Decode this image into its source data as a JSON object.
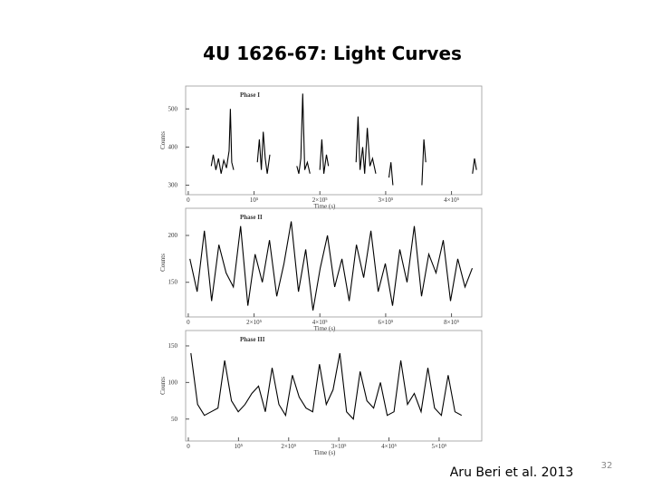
{
  "slide": {
    "title": "4U 1626-67: Light Curves",
    "citation": "Aru Beri et al. 2013",
    "page_number": 32
  },
  "chart_data": [
    {
      "type": "line",
      "title": "Phase I",
      "x_label": "Time (s)",
      "y_label": "Counts",
      "color": "#000000",
      "x": [
        35000,
        38000,
        42000,
        46000,
        50000,
        54000,
        58000,
        62000,
        64000,
        66000,
        69000,
        72000,
        105000,
        108000,
        111000,
        114000,
        117000,
        120000,
        124000,
        127000,
        165000,
        168000,
        171000,
        174000,
        177000,
        181000,
        185000,
        188000,
        200000,
        203000,
        206000,
        210000,
        213000,
        216000,
        255000,
        258000,
        261000,
        265000,
        268000,
        272000,
        276000,
        280000,
        285000,
        290000,
        305000,
        308000,
        311000,
        313000,
        355000,
        358000,
        361000,
        364000,
        432000,
        435000,
        438000
      ],
      "values": [
        350,
        380,
        340,
        370,
        330,
        365,
        345,
        390,
        500,
        360,
        340,
        null,
        360,
        420,
        340,
        440,
        370,
        330,
        380,
        null,
        350,
        330,
        370,
        540,
        340,
        360,
        330,
        null,
        340,
        420,
        330,
        380,
        350,
        null,
        360,
        480,
        340,
        400,
        330,
        450,
        350,
        370,
        330,
        null,
        320,
        360,
        300,
        null,
        300,
        420,
        360,
        null,
        330,
        370,
        340
      ],
      "xlim": [
        -4000,
        446000
      ],
      "ylim": [
        275,
        560
      ],
      "xticks": [
        0,
        {
          "value": 100000,
          "label": "10⁵"
        },
        {
          "value": 200000,
          "label": "2×10⁵"
        },
        {
          "value": 300000,
          "label": "3×10⁵"
        },
        {
          "value": 400000,
          "label": "4×10⁵"
        }
      ],
      "yticks": [
        300,
        400,
        500
      ]
    },
    {
      "type": "line",
      "title": "Phase II",
      "x_label": "Time (s)",
      "y_label": "Counts",
      "color": "#000000",
      "x": [
        5000,
        27000,
        49000,
        71000,
        93000,
        115000,
        137000,
        159000,
        181000,
        203000,
        225000,
        247000,
        269000,
        291000,
        313000,
        335000,
        357000,
        379000,
        401000,
        423000,
        445000,
        467000,
        489000,
        511000,
        533000,
        555000,
        577000,
        599000,
        621000,
        643000,
        665000,
        687000,
        709000,
        731000,
        753000,
        775000,
        797000,
        819000,
        841000,
        863000
      ],
      "values": [
        175,
        140,
        205,
        130,
        190,
        160,
        145,
        210,
        125,
        180,
        150,
        195,
        135,
        170,
        215,
        140,
        185,
        120,
        165,
        200,
        145,
        175,
        130,
        190,
        155,
        205,
        140,
        170,
        125,
        185,
        150,
        210,
        135,
        180,
        160,
        195,
        130,
        175,
        145,
        165
      ],
      "xlim": [
        -8000,
        892000
      ],
      "ylim": [
        113,
        229
      ],
      "xticks": [
        0,
        {
          "value": 200000,
          "label": "2×10⁵"
        },
        {
          "value": 400000,
          "label": "4×10⁵"
        },
        {
          "value": 600000,
          "label": "6×10⁵"
        },
        {
          "value": 800000,
          "label": "8×10⁵"
        }
      ],
      "yticks": [
        150,
        200
      ]
    },
    {
      "type": "line",
      "title": "Phase III",
      "x_label": "Time (s)",
      "y_label": "Counts",
      "color": "#000000",
      "x": [
        5000,
        18500,
        32000,
        45500,
        59000,
        72500,
        86000,
        99500,
        113000,
        126500,
        140000,
        153500,
        167000,
        180500,
        194000,
        207500,
        221000,
        234500,
        248000,
        261500,
        275000,
        288500,
        302000,
        315500,
        329000,
        342500,
        356000,
        369500,
        383000,
        396500,
        410000,
        423500,
        437000,
        450500,
        464000,
        477500,
        491000,
        504500,
        518000,
        531500,
        545000
      ],
      "values": [
        140,
        70,
        55,
        60,
        65,
        130,
        75,
        60,
        70,
        85,
        95,
        60,
        120,
        70,
        55,
        110,
        80,
        65,
        60,
        125,
        70,
        90,
        140,
        60,
        50,
        115,
        75,
        65,
        100,
        55,
        60,
        130,
        70,
        85,
        60,
        120,
        65,
        55,
        110,
        60,
        55
      ],
      "xlim": [
        -5400,
        585000
      ],
      "ylim": [
        20,
        171
      ],
      "xticks": [
        0,
        {
          "value": 100000,
          "label": "10⁵"
        },
        {
          "value": 200000,
          "label": "2×10⁵"
        },
        {
          "value": 300000,
          "label": "3×10⁵"
        },
        {
          "value": 400000,
          "label": "4×10⁵"
        },
        {
          "value": 500000,
          "label": "5×10⁵"
        }
      ],
      "yticks": [
        50,
        100,
        150
      ]
    }
  ]
}
